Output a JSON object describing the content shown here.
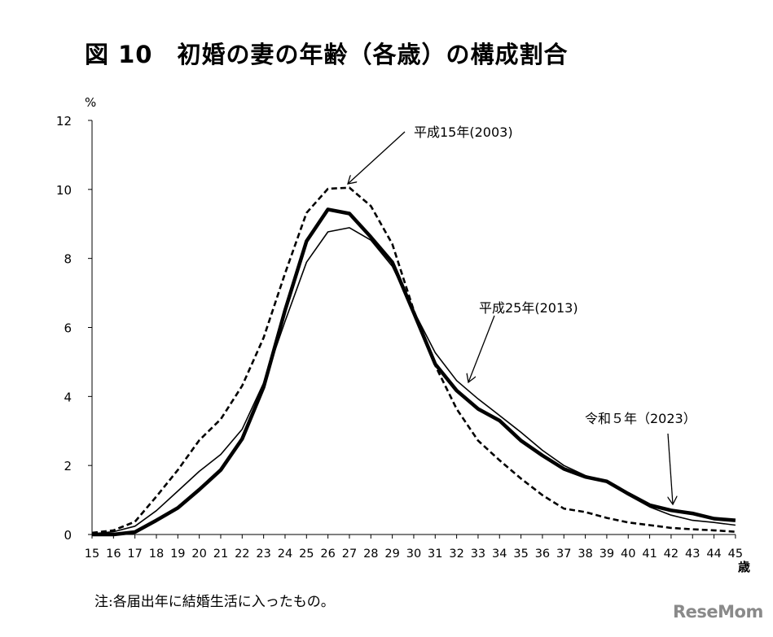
{
  "title": "図 10　初婚の妻の年齢（各歳）の構成割合",
  "note": "注:各届出年に結婚生活に入ったもの。",
  "logo": "ReseMom",
  "chart_data": {
    "type": "line",
    "title": "図 10　初婚の妻の年齢（各歳）の構成割合",
    "ylabel": "%",
    "xlabel": "歳",
    "ylim": [
      0,
      12
    ],
    "yticks": [
      0,
      2,
      4,
      6,
      8,
      10,
      12
    ],
    "grid": false,
    "x": [
      15,
      16,
      17,
      18,
      19,
      20,
      21,
      22,
      23,
      24,
      25,
      26,
      27,
      28,
      29,
      30,
      31,
      32,
      33,
      34,
      35,
      36,
      37,
      38,
      39,
      40,
      41,
      42,
      43,
      44,
      45
    ],
    "series": [
      {
        "name": "平成15年(2003)",
        "style": "dashed",
        "color": "#000000",
        "values": [
          0.05,
          0.12,
          0.37,
          1.1,
          1.87,
          2.73,
          3.34,
          4.31,
          5.7,
          7.57,
          9.32,
          10.02,
          10.05,
          9.52,
          8.42,
          6.5,
          4.9,
          3.64,
          2.72,
          2.15,
          1.62,
          1.14,
          0.75,
          0.65,
          0.48,
          0.35,
          0.27,
          0.19,
          0.15,
          0.12,
          0.08
        ]
      },
      {
        "name": "平成25年(2013)",
        "style": "thin",
        "color": "#000000",
        "values": [
          0.02,
          0.08,
          0.24,
          0.69,
          1.26,
          1.83,
          2.32,
          3.05,
          4.39,
          6.18,
          7.89,
          8.77,
          8.89,
          8.53,
          7.77,
          6.48,
          5.27,
          4.46,
          3.93,
          3.45,
          2.96,
          2.44,
          2.0,
          1.71,
          1.52,
          1.14,
          0.8,
          0.56,
          0.41,
          0.35,
          0.27
        ]
      },
      {
        "name": "令和５年（2023）",
        "style": "thick",
        "color": "#000000",
        "values": [
          0.0,
          0.0,
          0.07,
          0.41,
          0.77,
          1.3,
          1.87,
          2.77,
          4.27,
          6.5,
          8.5,
          9.42,
          9.3,
          8.62,
          7.89,
          6.43,
          4.94,
          4.17,
          3.64,
          3.3,
          2.72,
          2.29,
          1.9,
          1.67,
          1.54,
          1.18,
          0.85,
          0.7,
          0.61,
          0.46,
          0.41
        ]
      }
    ],
    "annotations": [
      {
        "text": "平成15年(2003)",
        "points_to_age": 27
      },
      {
        "text": "平成25年(2013)",
        "points_to_age": 32.5
      },
      {
        "text": "令和５年（2023）",
        "points_to_age": 42
      }
    ]
  }
}
